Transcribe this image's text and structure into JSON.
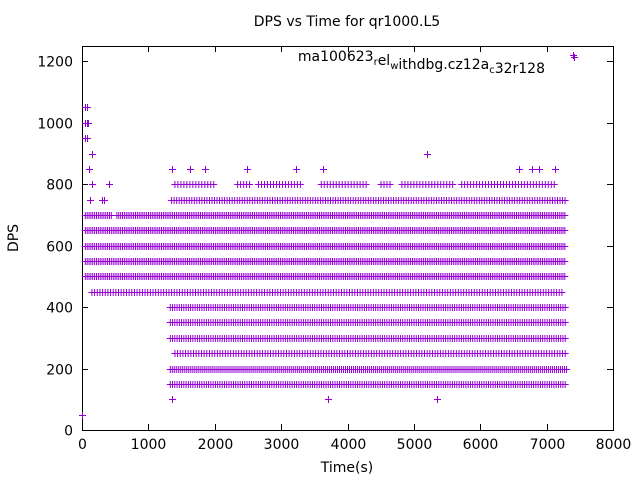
{
  "chart_data": {
    "type": "scatter",
    "title": "DPS vs Time for qr1000.L5",
    "xlabel": "Time(s)",
    "ylabel": "DPS",
    "xlim": [
      0,
      8000
    ],
    "ylim": [
      0,
      1250
    ],
    "xticks": [
      0,
      1000,
      2000,
      3000,
      4000,
      5000,
      6000,
      7000,
      8000
    ],
    "yticks": [
      0,
      200,
      400,
      600,
      800,
      1000,
      1200
    ],
    "grid": false,
    "legend": "top-right",
    "marker_color": "#9400d3",
    "series": [
      {
        "name": "ma100623_rel_withdbg.cz12a_c32r128",
        "name_parts": [
          {
            "t": "ma100623",
            "sub": false
          },
          {
            "t": "r",
            "sub": true
          },
          {
            "t": "el",
            "sub": false
          },
          {
            "t": "w",
            "sub": true
          },
          {
            "t": "ithdbg.cz12a",
            "sub": false
          },
          {
            "t": "c",
            "sub": true
          },
          {
            "t": "32r128",
            "sub": false
          }
        ],
        "outliers": [
          {
            "x": 0,
            "y": 50
          },
          {
            "x": 50,
            "y": 1050
          },
          {
            "x": 80,
            "y": 1050
          },
          {
            "x": 40,
            "y": 1000
          },
          {
            "x": 70,
            "y": 1000
          },
          {
            "x": 90,
            "y": 1000
          },
          {
            "x": 50,
            "y": 950
          },
          {
            "x": 80,
            "y": 950
          },
          {
            "x": 150,
            "y": 900
          },
          {
            "x": 100,
            "y": 850
          },
          {
            "x": 150,
            "y": 800
          },
          {
            "x": 400,
            "y": 800
          },
          {
            "x": 120,
            "y": 750
          },
          {
            "x": 300,
            "y": 750
          },
          {
            "x": 330,
            "y": 750
          },
          {
            "x": 1350,
            "y": 850
          },
          {
            "x": 1620,
            "y": 850
          },
          {
            "x": 1850,
            "y": 850
          },
          {
            "x": 2480,
            "y": 850
          },
          {
            "x": 3220,
            "y": 850
          },
          {
            "x": 3630,
            "y": 850
          },
          {
            "x": 5200,
            "y": 900
          },
          {
            "x": 6580,
            "y": 850
          },
          {
            "x": 6780,
            "y": 850
          },
          {
            "x": 6880,
            "y": 850
          },
          {
            "x": 7120,
            "y": 850
          },
          {
            "x": 1350,
            "y": 100
          },
          {
            "x": 3700,
            "y": 100
          },
          {
            "x": 5350,
            "y": 100
          },
          {
            "x": 7400,
            "y": 1220
          }
        ],
        "bands": [
          {
            "y": 800,
            "x_start": 1400,
            "x_end": 7150,
            "step": 45,
            "gaps": [
              [
                2000,
                2300
              ],
              [
                2550,
                2650
              ],
              [
                3300,
                3600
              ],
              [
                4300,
                4500
              ],
              [
                4650,
                4800
              ],
              [
                5600,
                5700
              ]
            ]
          },
          {
            "y": 750,
            "x_start": 1350,
            "x_end": 7300,
            "step": 38,
            "gaps": []
          },
          {
            "y": 700,
            "x_start": 50,
            "x_end": 7300,
            "step": 28,
            "gaps": [
              [
                450,
                520
              ]
            ]
          },
          {
            "y": 650,
            "x_start": 50,
            "x_end": 7300,
            "step": 28,
            "gaps": []
          },
          {
            "y": 600,
            "x_start": 50,
            "x_end": 7300,
            "step": 28,
            "gaps": []
          },
          {
            "y": 550,
            "x_start": 50,
            "x_end": 7300,
            "step": 28,
            "gaps": []
          },
          {
            "y": 500,
            "x_start": 50,
            "x_end": 7300,
            "step": 28,
            "gaps": []
          },
          {
            "y": 450,
            "x_start": 150,
            "x_end": 7250,
            "step": 40,
            "gaps": []
          },
          {
            "y": 400,
            "x_start": 1330,
            "x_end": 7300,
            "step": 34,
            "gaps": []
          },
          {
            "y": 350,
            "x_start": 1330,
            "x_end": 7300,
            "step": 34,
            "gaps": []
          },
          {
            "y": 300,
            "x_start": 1330,
            "x_end": 7300,
            "step": 34,
            "gaps": []
          },
          {
            "y": 250,
            "x_start": 1400,
            "x_end": 7300,
            "step": 40,
            "gaps": []
          },
          {
            "y": 200,
            "x_start": 1330,
            "x_end": 7300,
            "step": 30,
            "gaps": []
          },
          {
            "y": 150,
            "x_start": 1330,
            "x_end": 7300,
            "step": 34,
            "gaps": []
          }
        ]
      }
    ]
  }
}
